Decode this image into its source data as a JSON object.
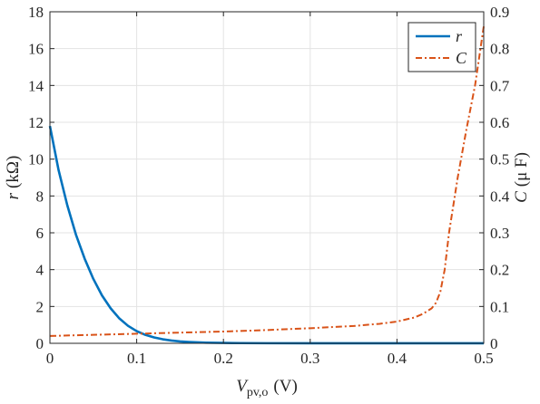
{
  "chart_data": {
    "type": "line",
    "x_axis": {
      "label_main": "V",
      "label_sub": "pv,o",
      "label_unit": "(V)",
      "lim": [
        0,
        0.5
      ],
      "ticks": [
        0,
        0.1,
        0.2,
        0.3,
        0.4,
        0.5
      ],
      "tick_labels": [
        "0",
        "0.1",
        "0.2",
        "0.3",
        "0.4",
        "0.5"
      ]
    },
    "y_left": {
      "label_main": "r",
      "label_unit": "(kΩ)",
      "lim": [
        0,
        18
      ],
      "ticks": [
        0,
        2,
        4,
        6,
        8,
        10,
        12,
        14,
        16,
        18
      ],
      "tick_labels": [
        "0",
        "2",
        "4",
        "6",
        "8",
        "10",
        "12",
        "14",
        "16",
        "18"
      ]
    },
    "y_right": {
      "label_main": "C",
      "label_unit": "(μ F)",
      "lim": [
        0,
        0.9
      ],
      "ticks": [
        0,
        0.1,
        0.2,
        0.3,
        0.4,
        0.5,
        0.6,
        0.7,
        0.8,
        0.9
      ],
      "tick_labels": [
        "0",
        "0.1",
        "0.2",
        "0.3",
        "0.4",
        "0.5",
        "0.6",
        "0.7",
        "0.8",
        "0.9"
      ]
    },
    "grid": true,
    "legend_position": "top-right",
    "series": [
      {
        "name": "r",
        "axis": "left",
        "color": "#0072BD",
        "style": "solid",
        "x": [
          0,
          0.01,
          0.02,
          0.03,
          0.04,
          0.05,
          0.06,
          0.07,
          0.08,
          0.09,
          0.1,
          0.11,
          0.12,
          0.13,
          0.14,
          0.15,
          0.16,
          0.17,
          0.18,
          0.2,
          0.22,
          0.25,
          0.3,
          0.35,
          0.4,
          0.45,
          0.5
        ],
        "y": [
          11.8,
          9.4,
          7.5,
          5.9,
          4.6,
          3.5,
          2.6,
          1.9,
          1.35,
          0.95,
          0.66,
          0.46,
          0.32,
          0.22,
          0.15,
          0.1,
          0.07,
          0.05,
          0.035,
          0.02,
          0.012,
          0.006,
          0.003,
          0.002,
          0.001,
          0.001,
          0.001
        ]
      },
      {
        "name": "C",
        "axis": "right",
        "color": "#D95319",
        "style": "dash-dot",
        "x": [
          0,
          0.05,
          0.1,
          0.15,
          0.2,
          0.25,
          0.3,
          0.35,
          0.38,
          0.4,
          0.42,
          0.43,
          0.44,
          0.445,
          0.45,
          0.455,
          0.46,
          0.47,
          0.48,
          0.49,
          0.5
        ],
        "y": [
          0.02,
          0.023,
          0.026,
          0.029,
          0.032,
          0.036,
          0.041,
          0.047,
          0.053,
          0.059,
          0.07,
          0.08,
          0.095,
          0.11,
          0.14,
          0.2,
          0.3,
          0.45,
          0.58,
          0.7,
          0.86
        ]
      }
    ]
  }
}
